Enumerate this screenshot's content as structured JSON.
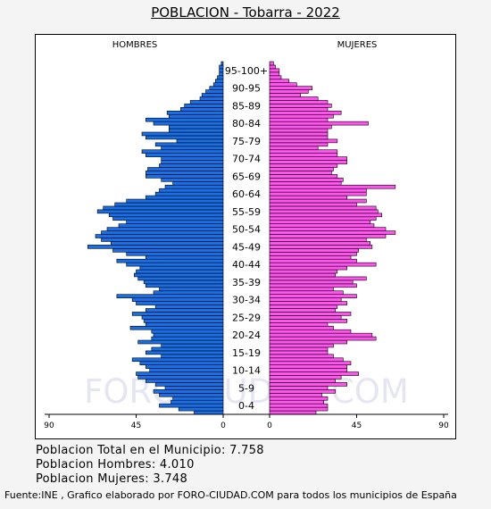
{
  "title": "POBLACION - Tobarra - 2022",
  "info": {
    "total": "Poblacion Total en el Municipio: 7.758",
    "men": "Poblacion Hombres: 4.010",
    "women": "Poblacion Mujeres: 3.748"
  },
  "source": "Fuente:INE , Grafico elaborado por FORO-CIUDAD.COM para todos los municipios de España",
  "watermark": "FORO-CIUDAD.COM",
  "colors": {
    "men": "#1a6fe6",
    "women": "#ff55ee",
    "stroke": "#000000",
    "watermark": "#e6e6f2"
  },
  "chart_data": {
    "type": "bar",
    "orientation": "population-pyramid",
    "left_label": "HOMBRES",
    "right_label": "MUJERES",
    "xlim": [
      0,
      90
    ],
    "tick_labels_left": [
      "90",
      "45",
      "0"
    ],
    "tick_labels_right": [
      "0",
      "45",
      "90"
    ],
    "age_labels": [
      "0-4",
      "5-9",
      "10-14",
      "15-19",
      "20-24",
      "25-29",
      "30-34",
      "35-39",
      "40-44",
      "45-49",
      "50-54",
      "55-59",
      "60-64",
      "65-69",
      "70-74",
      "75-79",
      "80-84",
      "85-89",
      "90-95",
      "95-100+"
    ],
    "ages_order": "age 0 first, up to 100+",
    "series": [
      {
        "name": "HOMBRES",
        "values": [
          15,
          23,
          33,
          27,
          26,
          33,
          36,
          30,
          35,
          40,
          44,
          45,
          38,
          40,
          43,
          47,
          32,
          40,
          37,
          32,
          44,
          37,
          36,
          37,
          48,
          40,
          41,
          42,
          47,
          40,
          35,
          45,
          47,
          55,
          36,
          33,
          40,
          41,
          44,
          46,
          45,
          43,
          50,
          55,
          40,
          50,
          57,
          70,
          58,
          63,
          66,
          63,
          60,
          54,
          50,
          57,
          59,
          65,
          62,
          56,
          50,
          40,
          35,
          33,
          30,
          26,
          32,
          40,
          40,
          39,
          33,
          32,
          32,
          40,
          42,
          32,
          35,
          24,
          40,
          42,
          28,
          28,
          36,
          40,
          28,
          29,
          22,
          20,
          17,
          12,
          11,
          9,
          7,
          5,
          4,
          3,
          2,
          2,
          2,
          1
        ]
      },
      {
        "name": "MUJERES",
        "values": [
          24,
          30,
          30,
          28,
          30,
          27,
          34,
          30,
          40,
          34,
          37,
          46,
          40,
          40,
          42,
          38,
          33,
          30,
          30,
          33,
          40,
          55,
          53,
          42,
          33,
          30,
          40,
          37,
          42,
          34,
          35,
          40,
          37,
          45,
          38,
          33,
          45,
          43,
          50,
          34,
          35,
          40,
          55,
          45,
          42,
          45,
          46,
          53,
          52,
          50,
          60,
          65,
          60,
          54,
          52,
          55,
          58,
          56,
          55,
          45,
          50,
          40,
          50,
          50,
          65,
          37,
          38,
          35,
          32,
          33,
          35,
          40,
          40,
          35,
          35,
          25,
          30,
          35,
          30,
          30,
          30,
          32,
          51,
          30,
          33,
          37,
          30,
          32,
          30,
          25,
          16,
          20,
          22,
          14,
          10,
          6,
          5,
          5,
          3,
          2
        ]
      }
    ]
  }
}
